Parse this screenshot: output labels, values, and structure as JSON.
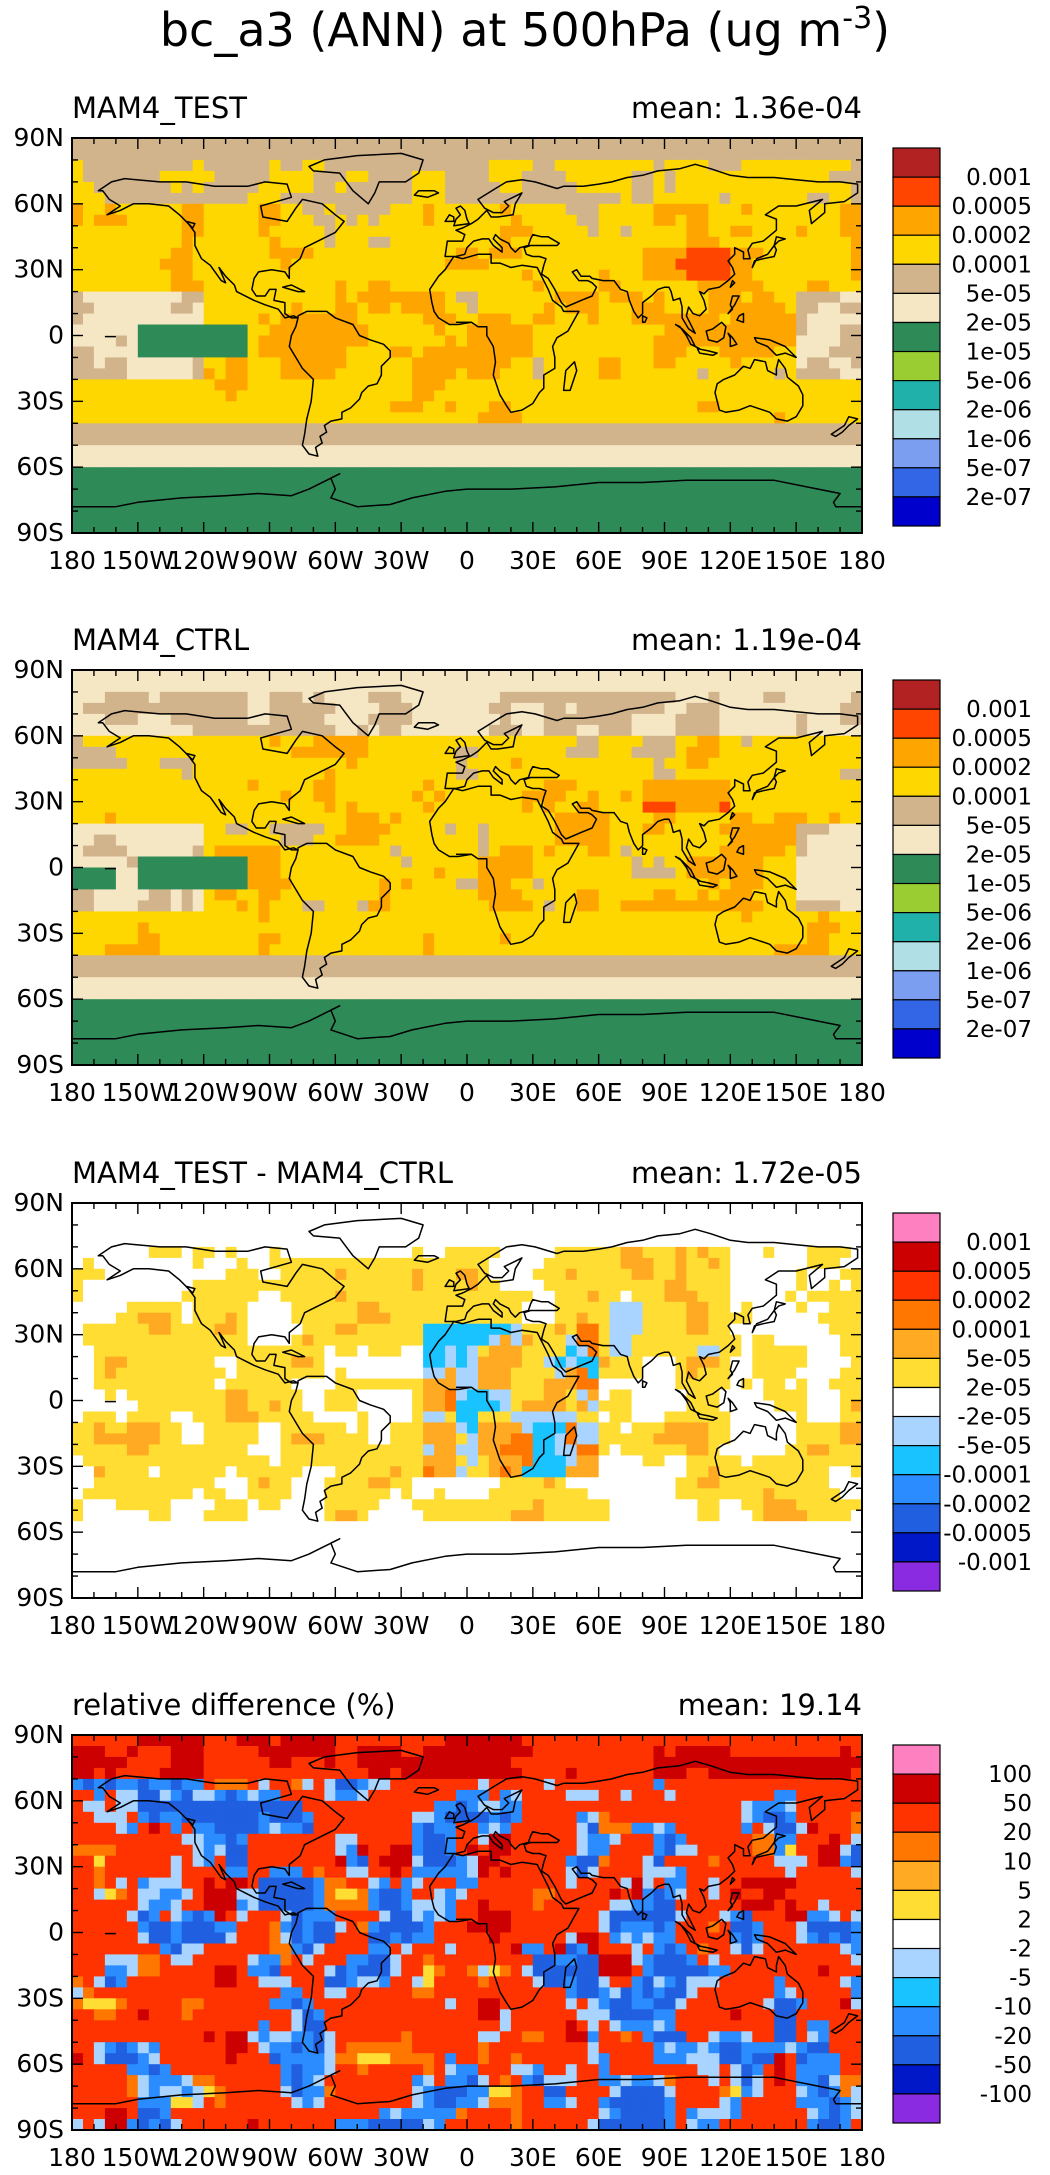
{
  "figure": {
    "title": "bc_a3 (ANN) at 500hPa (ug m",
    "title_sup": "-3",
    "title_close": ")"
  },
  "axes": {
    "lon_ticks": [
      "180",
      "150W",
      "120W",
      "90W",
      "60W",
      "30W",
      "0",
      "30E",
      "60E",
      "90E",
      "120E",
      "150E",
      "180"
    ],
    "lat_ticks": [
      "90N",
      "60N",
      "30N",
      "0",
      "30S",
      "60S",
      "90S"
    ]
  },
  "panels": [
    {
      "name": "MAM4_TEST",
      "left_title": "MAM4_TEST",
      "right_title": "mean: 1.36e-04",
      "colorbar_labels": [
        "0.001",
        "0.0005",
        "0.0002",
        "0.0001",
        "5e-05",
        "2e-05",
        "1e-05",
        "5e-06",
        "2e-06",
        "1e-06",
        "5e-07",
        "2e-07"
      ],
      "colorbar_colors": [
        "#b22222",
        "#ff4500",
        "#ffa500",
        "#ffd700",
        "#d2b48c",
        "#f5e6c4",
        "#2e8b57",
        "#9acd32",
        "#20b2aa",
        "#b0e0e6",
        "#7b9ef0",
        "#3366e6",
        "#0000cd"
      ]
    },
    {
      "name": "MAM4_CTRL",
      "left_title": "MAM4_CTRL",
      "right_title": "mean: 1.19e-04",
      "colorbar_labels": [
        "0.001",
        "0.0005",
        "0.0002",
        "0.0001",
        "5e-05",
        "2e-05",
        "1e-05",
        "5e-06",
        "2e-06",
        "1e-06",
        "5e-07",
        "2e-07"
      ],
      "colorbar_colors": [
        "#b22222",
        "#ff4500",
        "#ffa500",
        "#ffd700",
        "#d2b48c",
        "#f5e6c4",
        "#2e8b57",
        "#9acd32",
        "#20b2aa",
        "#b0e0e6",
        "#7b9ef0",
        "#3366e6",
        "#0000cd"
      ]
    },
    {
      "name": "difference",
      "left_title": "MAM4_TEST - MAM4_CTRL",
      "right_title": "mean: 1.72e-05",
      "colorbar_labels": [
        "0.001",
        "0.0005",
        "0.0002",
        "0.0001",
        "5e-05",
        "2e-05",
        "-2e-05",
        "-5e-05",
        "-0.0001",
        "-0.0002",
        "-0.0005",
        "-0.001"
      ],
      "colorbar_colors": [
        "#ff80c0",
        "#cc0000",
        "#ff3300",
        "#ff7700",
        "#ffaa22",
        "#ffdd33",
        "#ffffff",
        "#a8d4ff",
        "#19c3ff",
        "#2b8cff",
        "#1f5fe0",
        "#0018c8",
        "#8a2be2"
      ]
    },
    {
      "name": "relative-difference",
      "left_title": "relative difference (%)",
      "right_title": "mean: 19.14",
      "colorbar_labels": [
        "100",
        "50",
        "20",
        "10",
        "5",
        "2",
        "-2",
        "-5",
        "-10",
        "-20",
        "-50",
        "-100"
      ],
      "colorbar_colors": [
        "#ff80c0",
        "#cc0000",
        "#ff3300",
        "#ff7700",
        "#ffaa22",
        "#ffdd33",
        "#ffffff",
        "#a8d4ff",
        "#19c3ff",
        "#2b8cff",
        "#1f5fe0",
        "#0018c8",
        "#8a2be2"
      ]
    }
  ]
}
